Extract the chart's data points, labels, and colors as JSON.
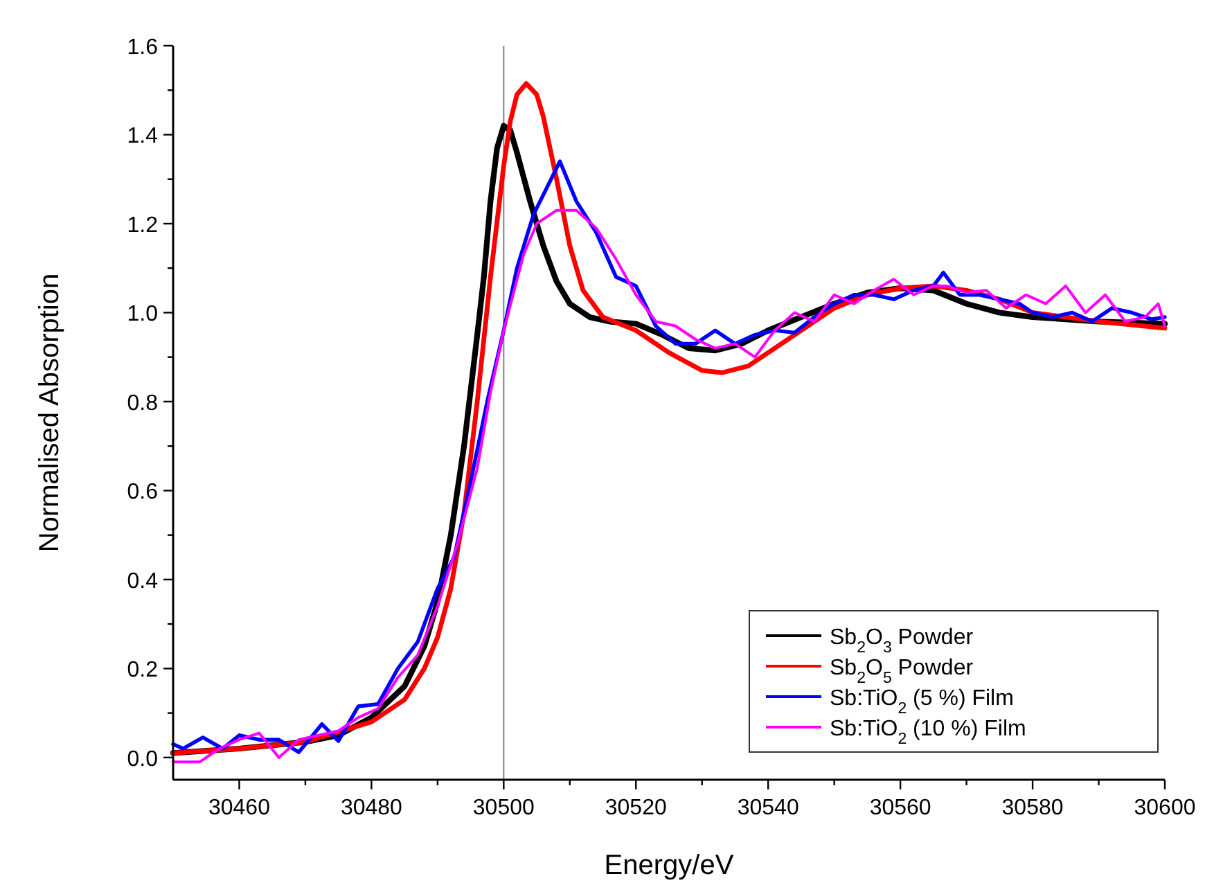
{
  "chart_data": {
    "type": "line",
    "xlabel": "Energy/eV",
    "ylabel": "Normalised Absorption",
    "xlim": [
      30450,
      30600
    ],
    "ylim": [
      -0.05,
      1.6
    ],
    "xticks": [
      30460,
      {
        "value": 30470,
        "label": null
      },
      30480,
      {
        "value": 30490,
        "label": null
      },
      30500,
      {
        "value": 30510,
        "label": null
      },
      30520,
      {
        "value": 30530,
        "label": null
      },
      30540,
      {
        "value": 30550,
        "label": null
      },
      30560,
      {
        "value": 30570,
        "label": null
      },
      30580,
      {
        "value": 30590,
        "label": null
      },
      30600
    ],
    "yticks": [
      {
        "value": 0,
        "label": "0.0"
      },
      {
        "value": 0.1,
        "label": null
      },
      0.2,
      {
        "value": 0.3,
        "label": null
      },
      0.4,
      {
        "value": 0.5,
        "label": null
      },
      0.6,
      {
        "value": 0.7,
        "label": null
      },
      0.8,
      {
        "value": 0.9,
        "label": null
      },
      {
        "value": 1,
        "label": "1.0"
      },
      {
        "value": 1.1,
        "label": null
      },
      1.2,
      {
        "value": 1.3,
        "label": null
      },
      1.4,
      {
        "value": 1.5,
        "label": null
      },
      1.6
    ],
    "grid": false,
    "legend": "bottom right",
    "line_style": "solid",
    "marker": "none",
    "ref_lines": [
      {
        "axis": "x",
        "value": 30500,
        "color": "#808080"
      }
    ],
    "series": [
      {
        "name": "Sb$_{2}$O$_{3}$ Powder",
        "color": "#000000",
        "x": [
          30450,
          30460,
          30470,
          30475,
          30480,
          30485,
          30488,
          30490,
          30492,
          30494,
          30496,
          30497,
          30498,
          30499,
          30500,
          30501,
          30502,
          30504,
          30506,
          30508,
          30510,
          30513,
          30516,
          30520,
          30524,
          30528,
          30532,
          30536,
          30540,
          30545,
          30550,
          30555,
          30560,
          30565,
          30570,
          30575,
          30580,
          30590,
          30600
        ],
        "values": [
          0.01,
          0.02,
          0.035,
          0.05,
          0.09,
          0.16,
          0.25,
          0.35,
          0.5,
          0.7,
          0.95,
          1.08,
          1.25,
          1.37,
          1.42,
          1.41,
          1.36,
          1.25,
          1.15,
          1.07,
          1.02,
          0.99,
          0.98,
          0.975,
          0.95,
          0.92,
          0.915,
          0.93,
          0.96,
          0.99,
          1.02,
          1.045,
          1.055,
          1.05,
          1.02,
          1.0,
          0.99,
          0.98,
          0.975
        ]
      },
      {
        "name": "Sb$_{2}$O$_{5}$ Powder",
        "color": "#ff0000",
        "x": [
          30450,
          30460,
          30470,
          30480,
          30485,
          30488,
          30490,
          30492,
          30494,
          30496,
          30498,
          30500,
          30501,
          30502,
          30503.4,
          30505,
          30506,
          30508,
          30510,
          30512,
          30515,
          30520,
          30525,
          30530,
          30533,
          30537,
          30540,
          30545,
          30550,
          30555,
          30560,
          30565,
          30570,
          30575,
          30580,
          30590,
          30600
        ],
        "values": [
          0.01,
          0.02,
          0.035,
          0.08,
          0.13,
          0.2,
          0.27,
          0.38,
          0.55,
          0.8,
          1.08,
          1.33,
          1.43,
          1.49,
          1.515,
          1.49,
          1.44,
          1.3,
          1.15,
          1.05,
          0.99,
          0.96,
          0.91,
          0.87,
          0.865,
          0.88,
          0.91,
          0.96,
          1.01,
          1.04,
          1.055,
          1.06,
          1.05,
          1.03,
          1.0,
          0.98,
          0.965
        ]
      },
      {
        "name": "Sb:TiO$_{2}$ (5 %) Film",
        "color": "#0000ff",
        "x": [
          30450,
          30451.5,
          30454.5,
          30457.5,
          30460,
          30463,
          30466,
          30469,
          30472.5,
          30475,
          30478,
          30481,
          30484,
          30487,
          30490,
          30492.5,
          30495,
          30497.5,
          30500,
          30502,
          30504.5,
          30508.5,
          30511,
          30514,
          30517,
          30520,
          30523,
          30526,
          30529,
          30532,
          30535,
          30538,
          30541,
          30544,
          30547,
          30550,
          30553,
          30556,
          30559,
          30562,
          30565,
          30566.5,
          30569,
          30572,
          30575,
          30578,
          30580,
          30583,
          30586,
          30589,
          30592,
          30595,
          30598,
          30600
        ],
        "values": [
          0.03,
          0.02,
          0.045,
          0.02,
          0.05,
          0.04,
          0.04,
          0.012,
          0.075,
          0.037,
          0.115,
          0.12,
          0.2,
          0.26,
          0.38,
          0.45,
          0.62,
          0.8,
          0.96,
          1.1,
          1.22,
          1.34,
          1.25,
          1.18,
          1.08,
          1.06,
          0.97,
          0.93,
          0.93,
          0.96,
          0.93,
          0.95,
          0.96,
          0.955,
          0.99,
          1.02,
          1.04,
          1.04,
          1.03,
          1.05,
          1.06,
          1.09,
          1.04,
          1.04,
          1.03,
          1.02,
          1.0,
          0.99,
          1.0,
          0.98,
          1.01,
          1.0,
          0.985,
          0.99
        ]
      },
      {
        "name": "Sb:TiO$_{2}$ (10 %) Film",
        "color": "#ff00ff",
        "x": [
          30450,
          30454,
          30457,
          30460,
          30463,
          30466,
          30469,
          30472,
          30475,
          30478,
          30481,
          30484,
          30487,
          30490,
          30493,
          30496,
          30498,
          30500,
          30503,
          30505,
          30508,
          30511,
          30514,
          30517,
          30520,
          30523,
          30526,
          30529,
          30532,
          30535,
          30538,
          30541,
          30544,
          30547,
          30550,
          30553,
          30556,
          30559,
          30562,
          30565,
          30567,
          30570,
          30573,
          30576,
          30579,
          30582,
          30585,
          30588,
          30591,
          30594,
          30597,
          30599,
          30600
        ],
        "values": [
          -0.01,
          -0.01,
          0.02,
          0.04,
          0.055,
          0.0,
          0.04,
          0.05,
          0.06,
          0.09,
          0.11,
          0.18,
          0.23,
          0.34,
          0.48,
          0.65,
          0.82,
          0.96,
          1.13,
          1.2,
          1.23,
          1.23,
          1.19,
          1.12,
          1.04,
          0.98,
          0.97,
          0.94,
          0.92,
          0.93,
          0.9,
          0.96,
          1.0,
          0.98,
          1.04,
          1.02,
          1.05,
          1.075,
          1.04,
          1.06,
          1.06,
          1.045,
          1.05,
          1.01,
          1.04,
          1.02,
          1.06,
          1.0,
          1.04,
          0.98,
          0.99,
          1.02,
          0.97
        ]
      }
    ]
  }
}
